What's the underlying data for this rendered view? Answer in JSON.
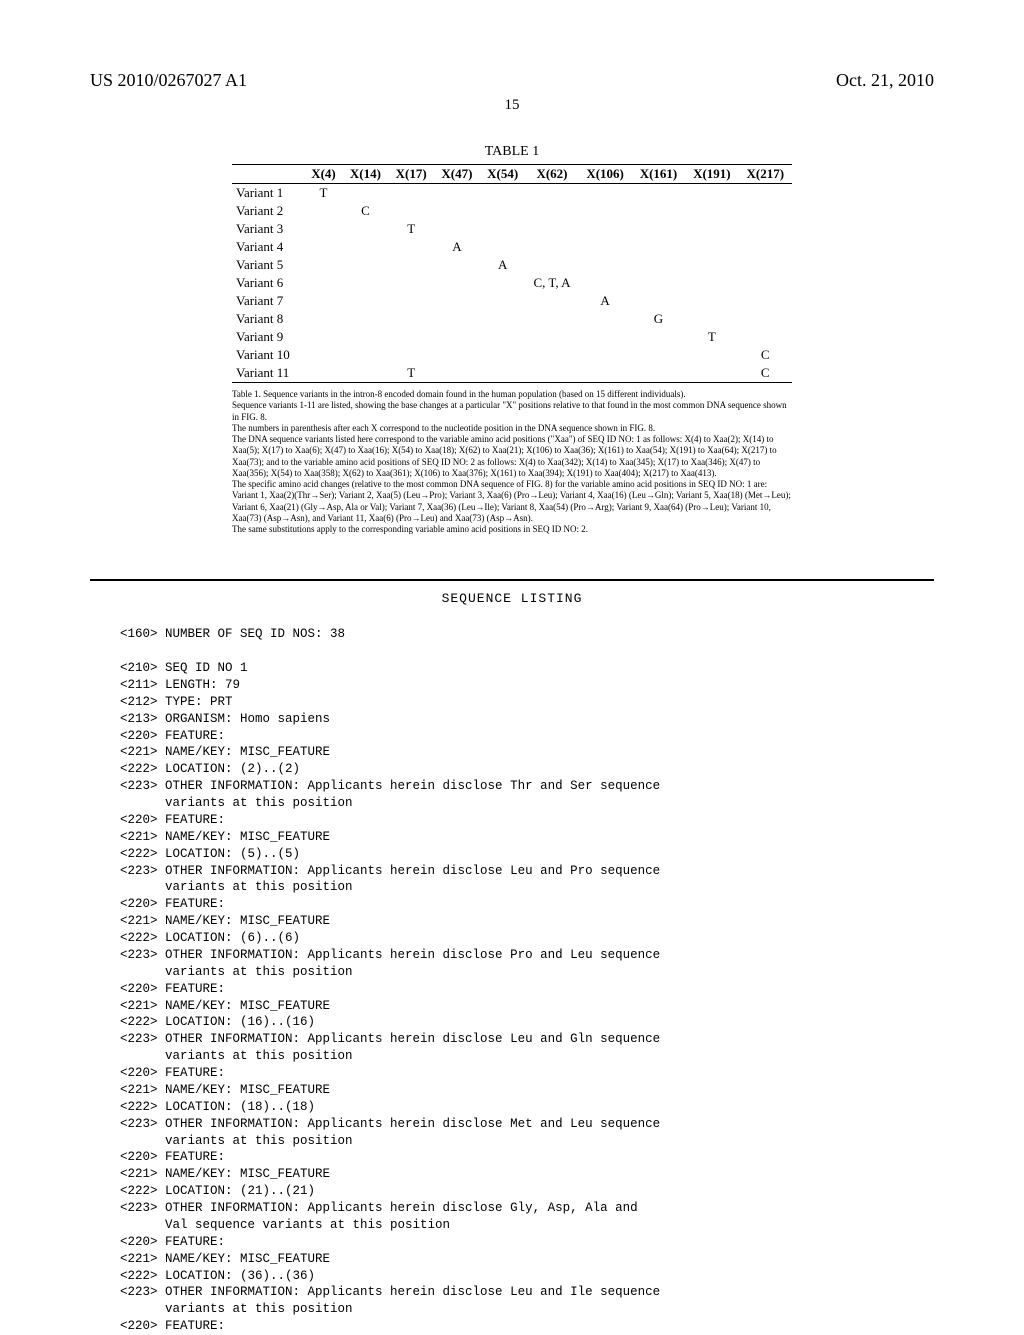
{
  "header": {
    "pubnum": "US 2010/0267027 A1",
    "date": "Oct. 21, 2010",
    "page": "15"
  },
  "table": {
    "title": "TABLE 1",
    "columns": [
      "X(4)",
      "X(14)",
      "X(17)",
      "X(47)",
      "X(54)",
      "X(62)",
      "X(106)",
      "X(161)",
      "X(191)",
      "X(217)"
    ],
    "rows": [
      {
        "label": "Variant 1",
        "cells": [
          "T",
          "",
          "",
          "",
          "",
          "",
          "",
          "",
          "",
          ""
        ]
      },
      {
        "label": "Variant 2",
        "cells": [
          "",
          "C",
          "",
          "",
          "",
          "",
          "",
          "",
          "",
          ""
        ]
      },
      {
        "label": "Variant 3",
        "cells": [
          "",
          "",
          "T",
          "",
          "",
          "",
          "",
          "",
          "",
          ""
        ]
      },
      {
        "label": "Variant 4",
        "cells": [
          "",
          "",
          "",
          "A",
          "",
          "",
          "",
          "",
          "",
          ""
        ]
      },
      {
        "label": "Variant 5",
        "cells": [
          "",
          "",
          "",
          "",
          "A",
          "",
          "",
          "",
          "",
          ""
        ]
      },
      {
        "label": "Variant 6",
        "cells": [
          "",
          "",
          "",
          "",
          "",
          "C, T, A",
          "",
          "",
          "",
          ""
        ]
      },
      {
        "label": "Variant 7",
        "cells": [
          "",
          "",
          "",
          "",
          "",
          "",
          "A",
          "",
          "",
          ""
        ]
      },
      {
        "label": "Variant 8",
        "cells": [
          "",
          "",
          "",
          "",
          "",
          "",
          "",
          "G",
          "",
          ""
        ]
      },
      {
        "label": "Variant 9",
        "cells": [
          "",
          "",
          "",
          "",
          "",
          "",
          "",
          "",
          "T",
          ""
        ]
      },
      {
        "label": "Variant 10",
        "cells": [
          "",
          "",
          "",
          "",
          "",
          "",
          "",
          "",
          "",
          "C"
        ]
      },
      {
        "label": "Variant 11",
        "cells": [
          "",
          "",
          "T",
          "",
          "",
          "",
          "",
          "",
          "",
          "C"
        ]
      }
    ]
  },
  "footnotes": [
    "Table 1. Sequence variants in the intron-8 encoded domain found in the human population (based on 15 different individuals).",
    "Sequence variants 1-11 are listed, showing the base changes at a particular \"X\" positions relative to that found in the most common DNA sequence shown in FIG. 8.",
    "The numbers in parenthesis after each X correspond to the nucleotide position in the DNA sequence shown in FIG. 8.",
    "The DNA sequence variants listed here correspond to the variable amino acid positions (\"Xaa\") of SEQ ID NO: 1 as follows: X(4) to Xaa(2); X(14) to Xaa(5); X(17) to Xaa(6); X(47) to Xaa(16); X(54) to Xaa(18); X(62) to Xaa(21); X(106) to Xaa(36); X(161) to Xaa(54); X(191) to Xaa(64); X(217) to Xaa(73); and to the variable amino acid positions of SEQ ID NO: 2 as follows: X(4) to Xaa(342); X(14) to Xaa(345); X(17) to Xaa(346); X(47) to Xaa(356); X(54) to Xaa(358); X(62) to Xaa(361); X(106) to Xaa(376); X(161) to Xaa(394); X(191) to Xaa(404); X(217) to Xaa(413).",
    "The specific amino acid changes (relative to the most common DNA sequence of FIG. 8) for the variable amino acid positions in SEQ ID NO: 1 are: Variant 1, Xaa(2)(Thr→Ser); Variant 2, Xaa(5) (Leu→Pro); Variant 3, Xaa(6) (Pro→Leu); Variant 4, Xaa(16) (Leu→Gln); Variant 5, Xaa(18) (Met→Leu); Variant 6, Xaa(21) (Gly→Asp, Ala or Val); Variant 7, Xaa(36) (Leu→Ile); Variant 8, Xaa(54) (Pro→Arg); Variant 9, Xaa(64) (Pro→Leu); Variant 10, Xaa(73) (Asp→Asn), and Variant 11, Xaa(6) (Pro→Leu) and Xaa(73) (Asp→Asn).",
    "The same substitutions apply to the corresponding variable amino acid positions in SEQ ID NO: 2."
  ],
  "seq": {
    "title": "SEQUENCE LISTING",
    "lines": [
      "<160> NUMBER OF SEQ ID NOS: 38",
      "",
      "<210> SEQ ID NO 1",
      "<211> LENGTH: 79",
      "<212> TYPE: PRT",
      "<213> ORGANISM: Homo sapiens",
      "<220> FEATURE:",
      "<221> NAME/KEY: MISC_FEATURE",
      "<222> LOCATION: (2)..(2)",
      "<223> OTHER INFORMATION: Applicants herein disclose Thr and Ser sequence",
      "      variants at this position",
      "<220> FEATURE:",
      "<221> NAME/KEY: MISC_FEATURE",
      "<222> LOCATION: (5)..(5)",
      "<223> OTHER INFORMATION: Applicants herein disclose Leu and Pro sequence",
      "      variants at this position",
      "<220> FEATURE:",
      "<221> NAME/KEY: MISC_FEATURE",
      "<222> LOCATION: (6)..(6)",
      "<223> OTHER INFORMATION: Applicants herein disclose Pro and Leu sequence",
      "      variants at this position",
      "<220> FEATURE:",
      "<221> NAME/KEY: MISC_FEATURE",
      "<222> LOCATION: (16)..(16)",
      "<223> OTHER INFORMATION: Applicants herein disclose Leu and Gln sequence",
      "      variants at this position",
      "<220> FEATURE:",
      "<221> NAME/KEY: MISC_FEATURE",
      "<222> LOCATION: (18)..(18)",
      "<223> OTHER INFORMATION: Applicants herein disclose Met and Leu sequence",
      "      variants at this position",
      "<220> FEATURE:",
      "<221> NAME/KEY: MISC_FEATURE",
      "<222> LOCATION: (21)..(21)",
      "<223> OTHER INFORMATION: Applicants herein disclose Gly, Asp, Ala and",
      "      Val sequence variants at this position",
      "<220> FEATURE:",
      "<221> NAME/KEY: MISC_FEATURE",
      "<222> LOCATION: (36)..(36)",
      "<223> OTHER INFORMATION: Applicants herein disclose Leu and Ile sequence",
      "      variants at this position",
      "<220> FEATURE:"
    ]
  }
}
